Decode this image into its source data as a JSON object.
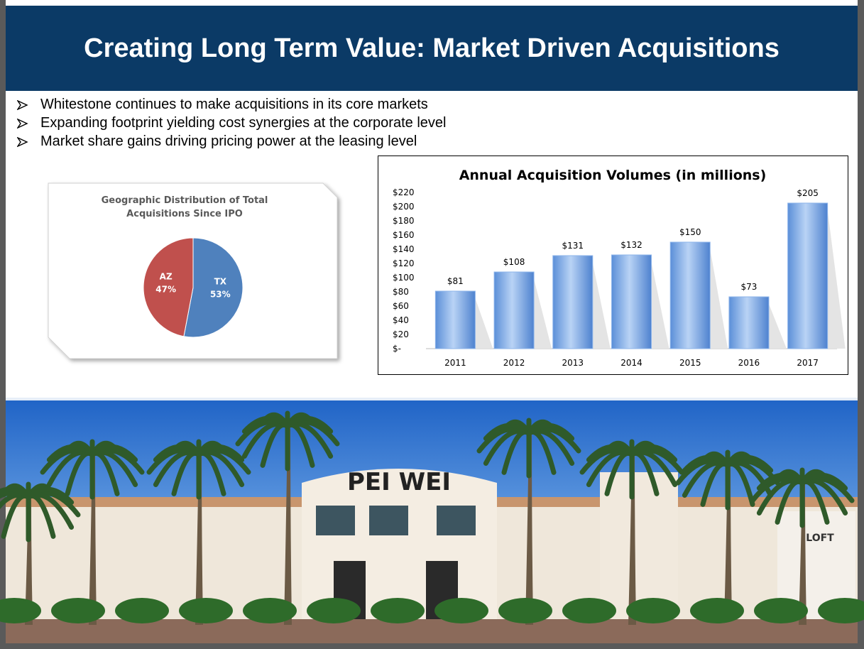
{
  "title": "Creating Long Term Value: Market Driven Acquisitions",
  "bullets": [
    "Whitestone continues to make acquisitions in its core markets",
    "Expanding footprint yielding cost synergies at the corporate level",
    "Market share gains driving pricing power at the leasing level"
  ],
  "chart_data": [
    {
      "type": "pie",
      "title": "Geographic Distribution of Total Acquisitions Since IPO",
      "categories": [
        "TX",
        "AZ"
      ],
      "values": [
        53,
        47
      ],
      "value_labels": [
        "53%",
        "47%"
      ],
      "colors": [
        "#4f81bd",
        "#c0504d"
      ]
    },
    {
      "type": "bar",
      "title": "Annual Acquisition Volumes (in millions)",
      "categories": [
        "2011",
        "2012",
        "2013",
        "2014",
        "2015",
        "2016",
        "2017"
      ],
      "values": [
        81,
        108,
        131,
        132,
        150,
        73,
        205
      ],
      "value_labels": [
        "$81",
        "$108",
        "$131",
        "$132",
        "$150",
        "$73",
        "$205"
      ],
      "color": "#8db4ea",
      "ylim": [
        0,
        220
      ],
      "yticks": [
        {
          "value": 0,
          "label": "$-"
        },
        {
          "value": 20,
          "label": "$20"
        },
        {
          "value": 40,
          "label": "$40"
        },
        {
          "value": 60,
          "label": "$60"
        },
        {
          "value": 80,
          "label": "$80"
        },
        {
          "value": 100,
          "label": "$100"
        },
        {
          "value": 120,
          "label": "$120"
        },
        {
          "value": 140,
          "label": "$140"
        },
        {
          "value": 160,
          "label": "$160"
        },
        {
          "value": 180,
          "label": "$180"
        },
        {
          "value": 200,
          "label": "$200"
        },
        {
          "value": 220,
          "label": "$220"
        }
      ],
      "grid": false
    }
  ],
  "photo_signs": [
    "PEI WEI",
    "LOFT"
  ]
}
